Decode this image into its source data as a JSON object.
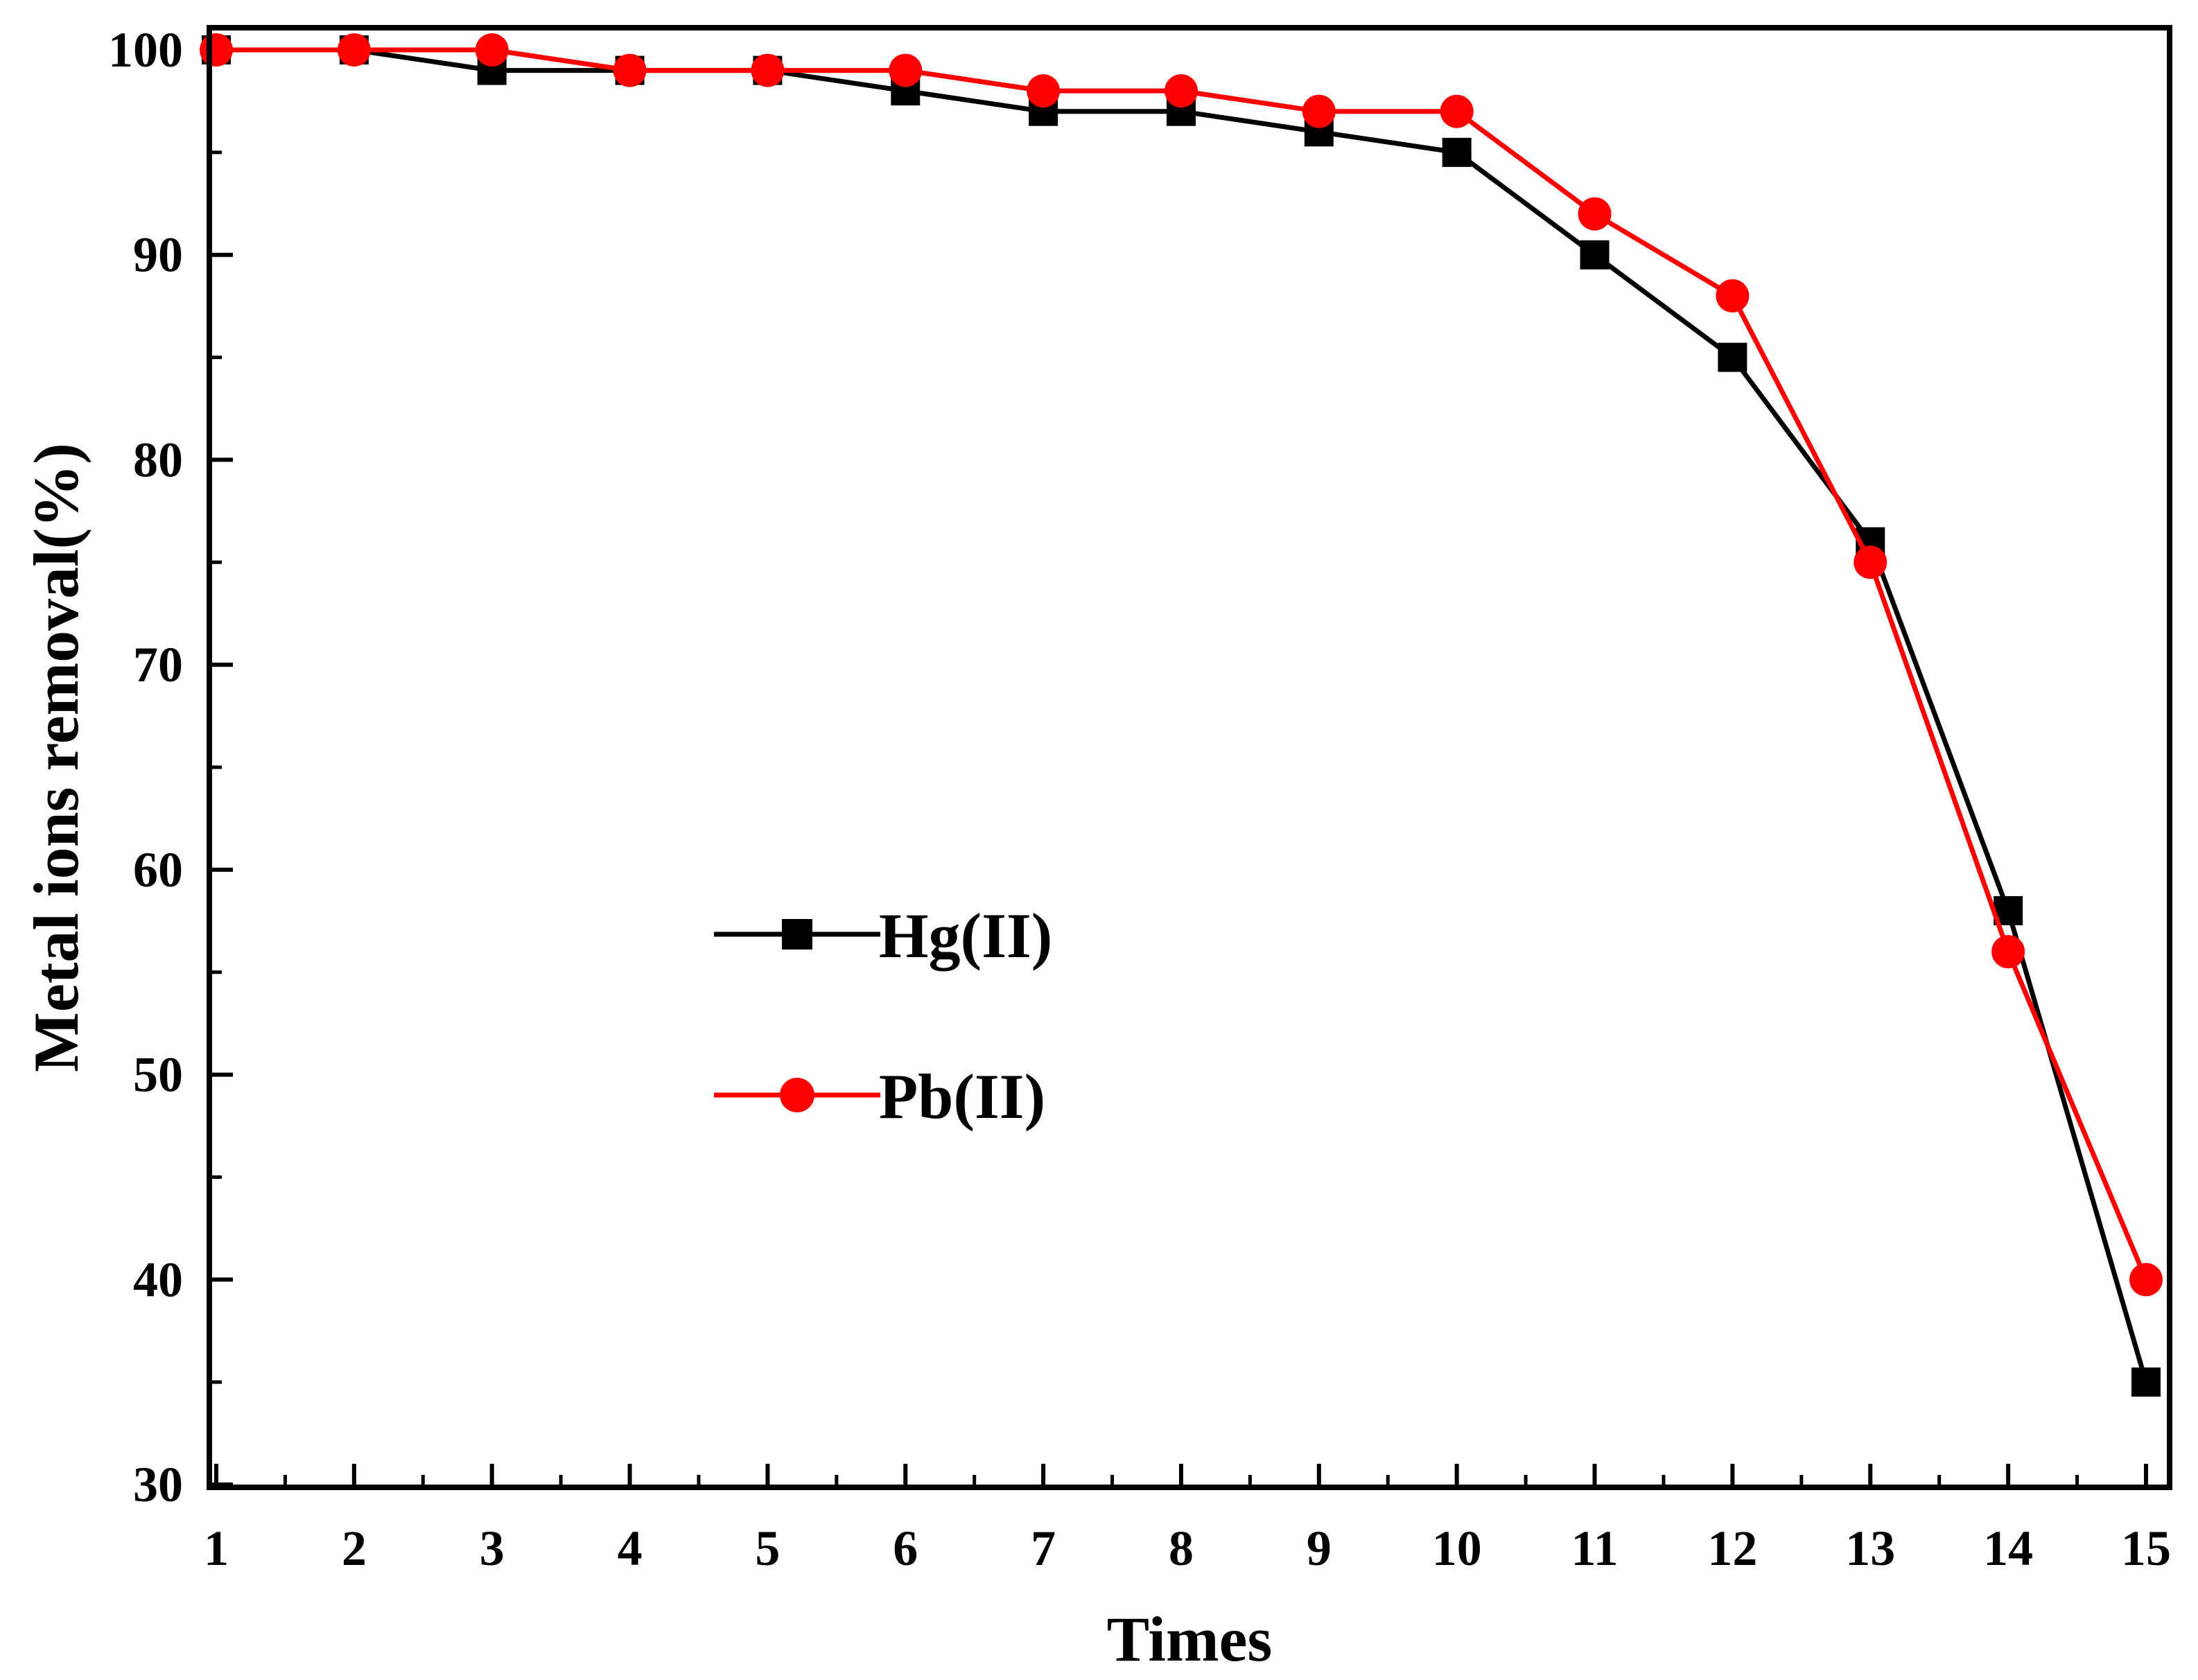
{
  "chart_data": {
    "type": "line",
    "title": "",
    "xlabel": "Times",
    "ylabel": "Metal ions removal(%)",
    "x": [
      1,
      2,
      3,
      4,
      5,
      6,
      7,
      8,
      9,
      10,
      11,
      12,
      13,
      14,
      15
    ],
    "xlim": [
      1,
      15
    ],
    "ylim": [
      30,
      100
    ],
    "xticks": [
      1,
      2,
      3,
      4,
      5,
      6,
      7,
      8,
      9,
      10,
      11,
      12,
      13,
      14,
      15
    ],
    "yticks": [
      30,
      40,
      50,
      60,
      70,
      80,
      90,
      100
    ],
    "grid": false,
    "legend_position": "center-left",
    "series": [
      {
        "name": "Hg(II)",
        "color": "#000000",
        "marker": "square",
        "values": [
          100,
          100,
          99,
          99,
          99,
          98,
          97,
          97,
          96,
          95,
          90,
          85,
          76,
          58,
          35
        ]
      },
      {
        "name": "Pb(II)",
        "color": "#ff0000",
        "marker": "circle",
        "values": [
          100,
          100,
          100,
          99,
          99,
          99,
          98,
          98,
          97,
          97,
          92,
          88,
          75,
          56,
          40
        ]
      }
    ]
  }
}
